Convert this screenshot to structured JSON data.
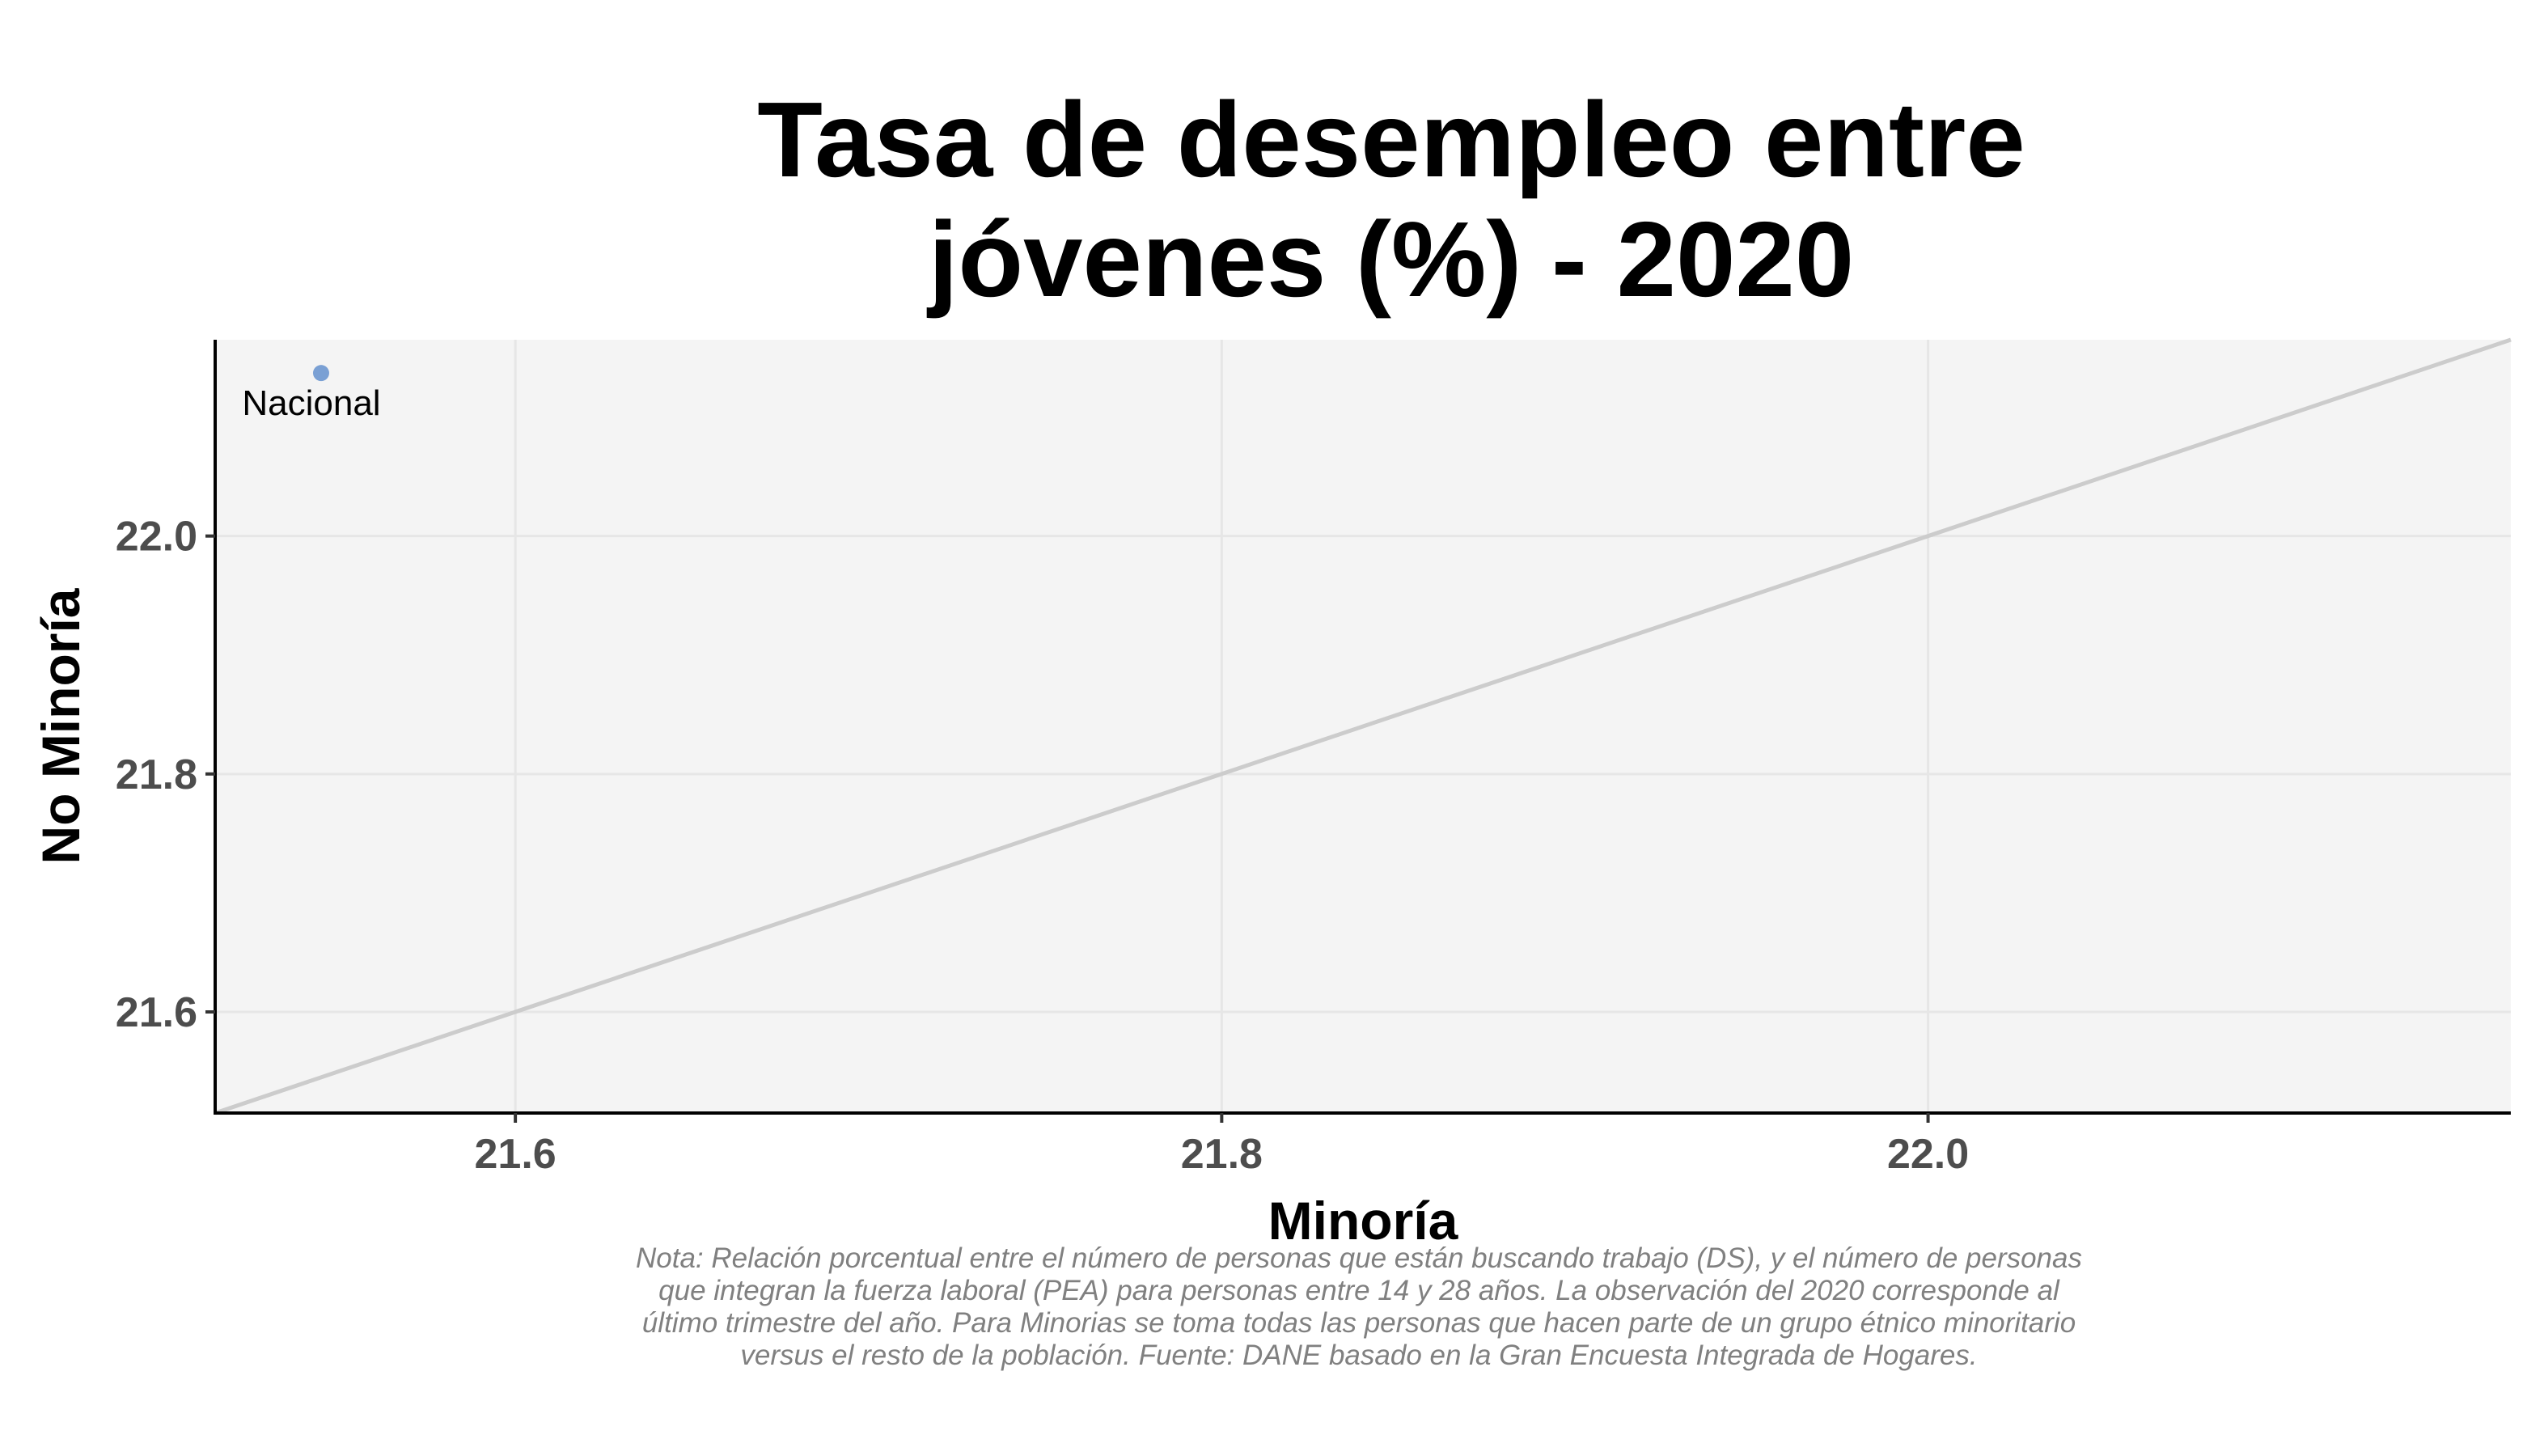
{
  "chart_data": {
    "type": "scatter",
    "title_lines": [
      "Tasa de desempleo entre",
      "jóvenes (%) - 2020"
    ],
    "xlabel": "Minoría",
    "ylabel": "No Minoría",
    "xlim": [
      21.515,
      22.165
    ],
    "ylim": [
      21.515,
      22.165
    ],
    "x_ticks": [
      "21.6",
      "21.8",
      "22.0"
    ],
    "y_ticks": [
      "21.6",
      "21.8",
      "22.0"
    ],
    "grid": true,
    "reference_line": "y = x",
    "points": [
      {
        "label": "Nacional",
        "x": 21.545,
        "y": 22.137,
        "color": "#7aa0d4"
      }
    ],
    "colors": {
      "panel_background": "#f4f4f4",
      "grid": "#e6e6e6",
      "reference_line": "#cccccc",
      "point": "#7aa0d4"
    }
  },
  "caption": "Nota: Relación porcentual entre el número de personas que están buscando trabajo (DS), y el número de personas que integran la fuerza laboral (PEA) para personas entre 14 y 28 años. La observación del 2020 corresponde al último trimestre del año. Para Minorias se toma todas las personas que hacen parte de un grupo étnico minoritario versus el resto de la población. Fuente: DANE basado en la Gran Encuesta Integrada de Hogares."
}
